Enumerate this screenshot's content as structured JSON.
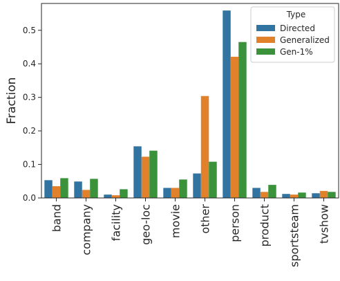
{
  "chart_data": {
    "type": "bar",
    "title": "",
    "xlabel": "",
    "ylabel": "Fraction",
    "ylim": [
      0,
      0.58
    ],
    "yticks": [
      0.0,
      0.1,
      0.2,
      0.3,
      0.4,
      0.5
    ],
    "ytick_labels": [
      "0.0",
      "0.1",
      "0.2",
      "0.3",
      "0.4",
      "0.5"
    ],
    "grid": false,
    "legend": {
      "title": "Type",
      "position": "top-right"
    },
    "categories": [
      "band",
      "company",
      "facility",
      "geo-loc",
      "movie",
      "other",
      "person",
      "product",
      "sportsteam",
      "tvshow"
    ],
    "series": [
      {
        "name": "Directed",
        "color": "#3274a1",
        "values": [
          0.053,
          0.049,
          0.01,
          0.154,
          0.03,
          0.073,
          0.559,
          0.03,
          0.012,
          0.014
        ]
      },
      {
        "name": "Generalized",
        "color": "#e1812c",
        "values": [
          0.035,
          0.024,
          0.008,
          0.123,
          0.03,
          0.304,
          0.421,
          0.018,
          0.01,
          0.021
        ]
      },
      {
        "name": "Gen-1%",
        "color": "#3a923a",
        "values": [
          0.059,
          0.057,
          0.026,
          0.141,
          0.055,
          0.108,
          0.465,
          0.039,
          0.016,
          0.018
        ]
      }
    ]
  }
}
